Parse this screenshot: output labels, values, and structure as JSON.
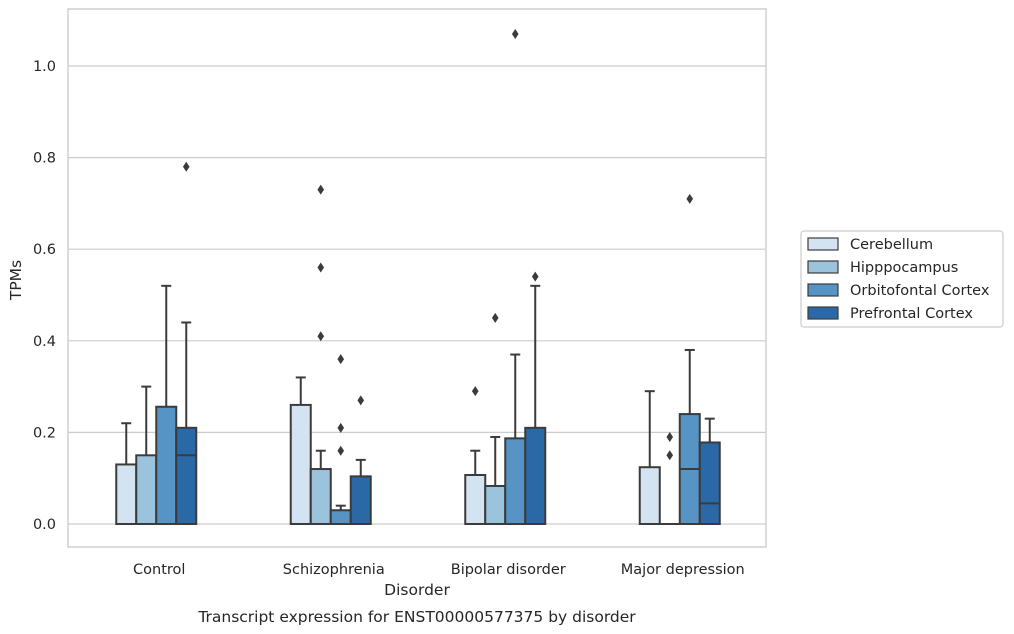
{
  "chart_data": {
    "type": "bar",
    "caption": "Transcript expression for ENST00000577375 by disorder",
    "xlabel": "Disorder",
    "ylabel": "TPMs",
    "ylim": [
      -0.052,
      1.13
    ],
    "yticks": [
      "0.0",
      "0.2",
      "0.4",
      "0.6",
      "0.8",
      "1.0"
    ],
    "ytick_values": [
      0.0,
      0.2,
      0.4,
      0.6,
      0.8,
      1.0
    ],
    "grid": "horizontal",
    "legend_position": "right",
    "categories": [
      "Control",
      "Schizophrenia",
      "Bipolar disorder",
      "Major depression"
    ],
    "series": [
      {
        "name": "Cerebellum",
        "color": "#d4e3f1",
        "values": [
          0.13,
          0.26,
          0.107,
          0.124
        ],
        "medians": [
          null,
          null,
          null,
          null
        ],
        "whisker_high": [
          0.22,
          0.32,
          0.16,
          0.29
        ],
        "outliers": [
          [],
          [],
          [
            0.29
          ],
          []
        ]
      },
      {
        "name": "Hipppocampus",
        "color": "#9bc4dc",
        "values": [
          0.15,
          0.12,
          0.083,
          0.0
        ],
        "medians": [
          null,
          null,
          null,
          null
        ],
        "whisker_high": [
          0.3,
          0.16,
          0.19,
          null
        ],
        "outliers": [
          [],
          [
            0.73,
            0.56,
            0.41
          ],
          [
            0.45
          ],
          [
            0.19,
            0.15
          ]
        ]
      },
      {
        "name": "Orbitofontal Cortex",
        "color": "#5594c4",
        "values": [
          0.256,
          0.03,
          0.187,
          0.24
        ],
        "medians": [
          null,
          null,
          null,
          0.12
        ],
        "whisker_high": [
          0.52,
          0.04,
          0.37,
          0.38
        ],
        "outliers": [
          [],
          [
            0.36,
            0.21,
            0.16
          ],
          [
            1.07
          ],
          [
            0.71
          ]
        ]
      },
      {
        "name": "Prefrontal Cortex",
        "color": "#2a69a5",
        "values": [
          0.21,
          0.104,
          0.21,
          0.178
        ],
        "medians": [
          0.15,
          null,
          null,
          0.045
        ],
        "whisker_high": [
          0.44,
          0.14,
          0.52,
          0.23
        ],
        "outliers": [
          [
            0.78
          ],
          [
            0.27
          ],
          [
            0.54
          ],
          []
        ]
      }
    ]
  }
}
